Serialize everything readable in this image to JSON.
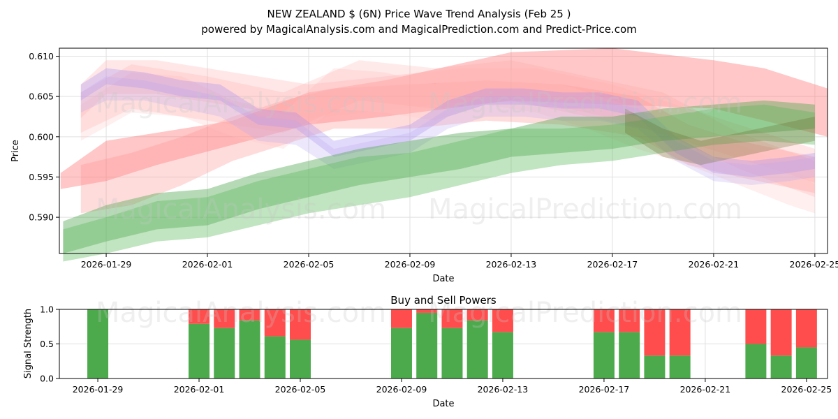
{
  "title": "NEW ZEALAND $ (6N) Price Wave Trend Analysis (Feb 25 )",
  "subtitle": "powered by MagicalAnalysis.com and MagicalPrediction.com and Predict-Price.com",
  "watermarks": {
    "left": "MagicalAnalysis.com",
    "right": "MagicalPrediction.com"
  },
  "chart_data": [
    {
      "type": "area",
      "title": "NEW ZEALAND $ (6N) Price Wave Trend Analysis (Feb 25 )",
      "xlabel": "Date",
      "ylabel": "Price",
      "grid": true,
      "x_start": "2026-01-27",
      "xlim_days": [
        0.15,
        30.5
      ],
      "ylim": [
        0.5855,
        0.611
      ],
      "x_ticks": [
        {
          "day": 2,
          "label": "2026-01-29"
        },
        {
          "day": 6,
          "label": "2026-02-01"
        },
        {
          "day": 10,
          "label": "2026-02-05"
        },
        {
          "day": 14,
          "label": "2026-02-09"
        },
        {
          "day": 18,
          "label": "2026-02-13"
        },
        {
          "day": 22,
          "label": "2026-02-17"
        },
        {
          "day": 26,
          "label": "2026-02-21"
        },
        {
          "day": 30,
          "label": "2026-02-25"
        }
      ],
      "y_ticks": [
        {
          "value": 0.59,
          "label": "0.590"
        },
        {
          "value": 0.595,
          "label": "0.595"
        },
        {
          "value": 0.6,
          "label": "0.600"
        },
        {
          "value": 0.605,
          "label": "0.605"
        },
        {
          "value": 0.61,
          "label": "0.610"
        }
      ],
      "series": [
        {
          "name": "red band 1",
          "color": "#ff6b6b",
          "opacity": 0.38,
          "x": [
            0.2,
            2,
            4,
            7,
            10,
            13,
            18,
            22,
            26,
            28,
            30.5
          ],
          "upper": [
            0.5955,
            0.5995,
            0.6005,
            0.602,
            0.6055,
            0.607,
            0.6105,
            0.611,
            0.6095,
            0.6085,
            0.606
          ],
          "lower": [
            0.5935,
            0.5945,
            0.5965,
            0.599,
            0.6015,
            0.6025,
            0.6045,
            0.604,
            0.6035,
            0.602,
            0.6
          ]
        },
        {
          "name": "red band 2",
          "color": "#ff8a8a",
          "opacity": 0.3,
          "x": [
            1,
            3,
            5,
            7,
            9,
            11,
            14,
            17,
            20,
            23,
            25,
            27,
            30
          ],
          "upper": [
            0.5965,
            0.598,
            0.6,
            0.6025,
            0.6045,
            0.606,
            0.6065,
            0.607,
            0.6065,
            0.605,
            0.6015,
            0.5995,
            0.5975
          ],
          "lower": [
            0.5905,
            0.5915,
            0.594,
            0.597,
            0.599,
            0.601,
            0.601,
            0.602,
            0.6015,
            0.6,
            0.5965,
            0.595,
            0.593
          ]
        },
        {
          "name": "pink band 3",
          "color": "#ffb0b0",
          "opacity": 0.3,
          "x": [
            1,
            2,
            4,
            6,
            8,
            10,
            13,
            16,
            19,
            22,
            24,
            26,
            28,
            30
          ],
          "upper": [
            0.6065,
            0.6095,
            0.6095,
            0.6085,
            0.6075,
            0.6065,
            0.6075,
            0.6085,
            0.6085,
            0.6065,
            0.6045,
            0.6025,
            0.6005,
            0.5985
          ]
        },
        {
          "name": "pink band 4",
          "color": "#ffc4c4",
          "opacity": 0.28,
          "x": [
            1,
            3,
            5,
            7,
            9,
            11,
            13,
            15,
            17,
            19,
            21,
            23,
            25,
            27,
            29,
            30
          ],
          "upper": [
            0.604,
            0.608,
            0.6075,
            0.6045,
            0.603,
            0.6085,
            0.608,
            0.6065,
            0.609,
            0.6075,
            0.6055,
            0.6035,
            0.601,
            0.599,
            0.5965,
            0.594
          ],
          "lower": [
            0.5995,
            0.603,
            0.6025,
            0.6,
            0.5985,
            0.6035,
            0.603,
            0.602,
            0.604,
            0.603,
            0.601,
            0.5985,
            0.5965,
            0.594,
            0.5915,
            0.5905
          ]
        },
        {
          "name": "pink band 5",
          "color": "#ff9e9e",
          "opacity": 0.22,
          "x": [
            1,
            3,
            6,
            9,
            12,
            15,
            18,
            21,
            24,
            27,
            30
          ],
          "upper": [
            0.6055,
            0.609,
            0.6075,
            0.6055,
            0.6095,
            0.6085,
            0.6095,
            0.6075,
            0.6055,
            0.6005,
            0.597
          ],
          "lower": [
            0.6005,
            0.6035,
            0.602,
            0.6005,
            0.6045,
            0.6035,
            0.6045,
            0.6025,
            0.6005,
            0.596,
            0.5925
          ]
        },
        {
          "name": "purple band 6",
          "color": "#a58cf0",
          "opacity": 0.32,
          "x": [
            1.0,
            2.0,
            3.5,
            5.0,
            6.5,
            8.0,
            9.5,
            11.0,
            12.5,
            14.0,
            15.5,
            17.0,
            18.5,
            20.0,
            21.5,
            23.0,
            24.5,
            26.0,
            27.5,
            29.0,
            30.0
          ],
          "upper": [
            0.6065,
            0.6085,
            0.608,
            0.607,
            0.6065,
            0.6035,
            0.603,
            0.5995,
            0.6005,
            0.6015,
            0.6045,
            0.606,
            0.606,
            0.6055,
            0.6055,
            0.6045,
            0.6,
            0.5975,
            0.597,
            0.5975,
            0.598
          ],
          "lower": [
            0.6045,
            0.6065,
            0.606,
            0.605,
            0.6045,
            0.6015,
            0.601,
            0.5975,
            0.5985,
            0.5995,
            0.6025,
            0.604,
            0.604,
            0.6035,
            0.6035,
            0.6025,
            0.598,
            0.5955,
            0.595,
            0.5955,
            0.596
          ]
        },
        {
          "name": "purple band 7",
          "color": "#b9a8f2",
          "opacity": 0.28,
          "x": [
            1.0,
            2.0,
            3.5,
            5.0,
            6.5,
            8.0,
            9.5,
            11.0,
            12.5,
            14.0,
            15.5,
            17.0,
            18.5,
            20.0,
            21.5,
            23.0,
            24.5,
            26.0,
            27.5,
            29.0,
            30.0
          ],
          "upper": [
            0.6055,
            0.6075,
            0.607,
            0.606,
            0.605,
            0.6025,
            0.602,
            0.5985,
            0.5995,
            0.6005,
            0.6035,
            0.605,
            0.605,
            0.6045,
            0.6045,
            0.6035,
            0.5995,
            0.597,
            0.5965,
            0.597,
            0.5975
          ],
          "lower": [
            0.603,
            0.6045,
            0.6045,
            0.6035,
            0.6025,
            0.5995,
            0.599,
            0.596,
            0.597,
            0.598,
            0.601,
            0.6025,
            0.6025,
            0.602,
            0.602,
            0.601,
            0.597,
            0.5945,
            0.594,
            0.5945,
            0.595
          ]
        },
        {
          "name": "green band 8",
          "color": "#4ea84e",
          "opacity": 0.42,
          "x": [
            0.3,
            2,
            4,
            6,
            8,
            10,
            12,
            14,
            16,
            18,
            20,
            22,
            24,
            26,
            28,
            30
          ],
          "upper": [
            0.5895,
            0.5915,
            0.593,
            0.5935,
            0.5955,
            0.597,
            0.5985,
            0.5995,
            0.6005,
            0.601,
            0.6025,
            0.6025,
            0.6035,
            0.604,
            0.6045,
            0.604
          ],
          "lower": [
            0.5855,
            0.587,
            0.5885,
            0.589,
            0.591,
            0.5925,
            0.594,
            0.595,
            0.596,
            0.5975,
            0.598,
            0.5985,
            0.5995,
            0.6,
            0.6005,
            0.601
          ]
        },
        {
          "name": "green band 9",
          "color": "#5cb85c",
          "opacity": 0.38,
          "x": [
            0.3,
            2,
            4,
            6,
            8,
            10,
            12,
            14,
            16,
            18,
            20,
            22,
            24,
            26,
            28,
            30
          ],
          "upper": [
            0.5885,
            0.59,
            0.592,
            0.5925,
            0.5945,
            0.596,
            0.5975,
            0.598,
            0.5995,
            0.601,
            0.601,
            0.6015,
            0.6025,
            0.6035,
            0.604,
            0.603
          ],
          "lower": [
            0.5845,
            0.5855,
            0.587,
            0.5875,
            0.589,
            0.5905,
            0.5915,
            0.5925,
            0.594,
            0.5955,
            0.5965,
            0.597,
            0.598,
            0.599,
            0.5995,
            0.599
          ]
        },
        {
          "name": "dark olive band 10",
          "color": "#6b6e2e",
          "opacity": 0.3,
          "x": [
            22.5,
            24,
            25.5,
            27,
            28.5,
            30
          ],
          "upper": [
            0.6035,
            0.601,
            0.5995,
            0.6005,
            0.6015,
            0.6025
          ],
          "lower": [
            0.6005,
            0.5975,
            0.5965,
            0.5975,
            0.5985,
            0.5995
          ]
        }
      ]
    },
    {
      "type": "bar",
      "title": "Buy and Sell Powers",
      "xlabel": "Date",
      "ylabel": "Signal Strength",
      "ylim": [
        0,
        1
      ],
      "x_start": "2026-01-27",
      "y_ticks": [
        {
          "value": 0,
          "label": "0.0"
        },
        {
          "value": 0.5,
          "label": "0.5"
        },
        {
          "value": 1,
          "label": "1.0"
        }
      ],
      "x_ticks": [
        {
          "day": 2,
          "label": "2026-01-29"
        },
        {
          "day": 6,
          "label": "2026-02-01"
        },
        {
          "day": 10,
          "label": "2026-02-05"
        },
        {
          "day": 14,
          "label": "2026-02-09"
        },
        {
          "day": 18,
          "label": "2026-02-13"
        },
        {
          "day": 22,
          "label": "2026-02-17"
        },
        {
          "day": 26,
          "label": "2026-02-21"
        },
        {
          "day": 30,
          "label": "2026-02-25"
        }
      ],
      "buy_color": "#4caa4c",
      "sell_color": "#ff4d4d",
      "series": [
        {
          "name": "Buy",
          "color": "#4caa4c"
        },
        {
          "name": "Sell",
          "color": "#ff4d4d"
        }
      ],
      "days": [
        2,
        5,
        6,
        7,
        8,
        9,
        12,
        13,
        14,
        15,
        16,
        17,
        21,
        22,
        23,
        24,
        27,
        28,
        29
      ],
      "buy": [
        1.0,
        0.79,
        0.73,
        0.84,
        0.61,
        0.56,
        0.73,
        0.95,
        0.73,
        0.84,
        0.67,
        0.67,
        0.67,
        0.33,
        0.33,
        0.5,
        0.33,
        0.45
      ],
      "buy_values": [
        1.0,
        0.79,
        0.73,
        0.84,
        0.61,
        0.56,
        0.73,
        0.95,
        0.73,
        0.84,
        0.67,
        0.67,
        0.67,
        0.33,
        0.33,
        0.5,
        0.33,
        0.45
      ],
      "buy_days": [
        2,
        6,
        7,
        8,
        9,
        10,
        14,
        15,
        16,
        17,
        18,
        22,
        23,
        24,
        25,
        28,
        29,
        30
      ]
    }
  ]
}
